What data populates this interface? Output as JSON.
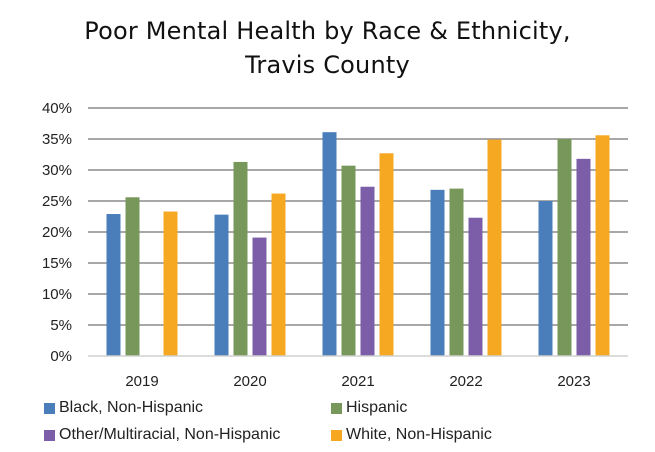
{
  "chart_data": {
    "type": "bar",
    "title": "Poor Mental Health by Race & Ethnicity, Travis County",
    "title_lines": [
      "Poor Mental Health by Race & Ethnicity,",
      "Travis County"
    ],
    "xlabel": "",
    "ylabel": "",
    "categories": [
      "2019",
      "2020",
      "2021",
      "2022",
      "2023"
    ],
    "ylim": [
      0,
      40
    ],
    "yticks": [
      0,
      5,
      10,
      15,
      20,
      25,
      30,
      35,
      40
    ],
    "ytick_labels": [
      "0%",
      "5%",
      "10%",
      "15%",
      "20%",
      "25%",
      "30%",
      "35%",
      "40%"
    ],
    "grid": true,
    "legend_position": "bottom",
    "series": [
      {
        "name": "Black, Non-Hispanic",
        "color": "#4a7ebb",
        "values": [
          22.9,
          22.8,
          36.1,
          26.8,
          25.0
        ]
      },
      {
        "name": "Hispanic",
        "color": "#77985a",
        "values": [
          25.6,
          31.3,
          30.7,
          27.0,
          35.0
        ]
      },
      {
        "name": "Other/Multiracial, Non-Hispanic",
        "color": "#7b5ea7",
        "values": [
          null,
          19.1,
          27.3,
          22.3,
          31.8
        ]
      },
      {
        "name": "White, Non-Hispanic",
        "color": "#f7a823",
        "values": [
          23.3,
          26.2,
          32.7,
          34.9,
          35.6
        ]
      }
    ]
  }
}
